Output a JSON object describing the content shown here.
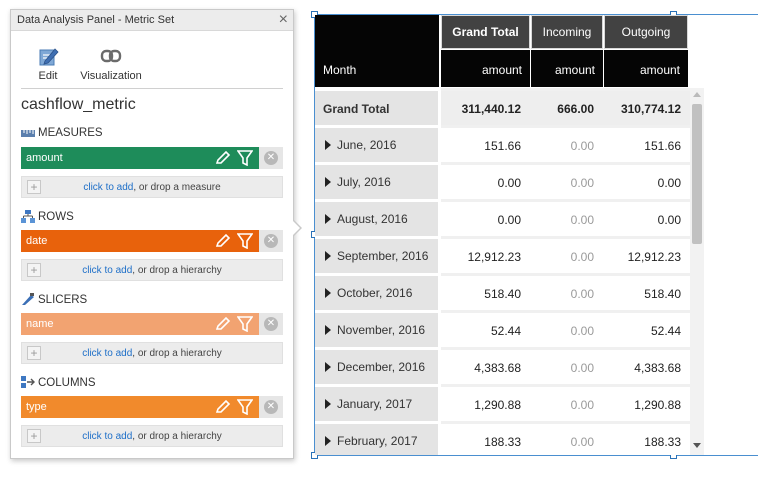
{
  "panel": {
    "title": "Data Analysis Panel - Metric Set",
    "close": "×",
    "toolbar": {
      "edit": "Edit",
      "visualization": "Visualization"
    },
    "metric_name": "cashflow_metric",
    "sections": {
      "measures": {
        "label": "MEASURES",
        "chip": "amount",
        "chip_color": "#1e8c5a",
        "drop_link": "click to add",
        "drop_rest": ", or drop a measure"
      },
      "rows": {
        "label": "ROWS",
        "chip": "date",
        "chip_color": "#e8620c",
        "drop_link": "click to add",
        "drop_rest": ", or drop a hierarchy"
      },
      "slicers": {
        "label": "SLICERS",
        "chip": "name",
        "chip_color": "#f2a371",
        "drop_link": "click to add",
        "drop_rest": ", or drop a hierarchy"
      },
      "columns": {
        "label": "COLUMNS",
        "chip": "type",
        "chip_color": "#f18a2c",
        "drop_link": "click to add",
        "drop_rest": ", or drop a hierarchy"
      }
    }
  },
  "table": {
    "col_headers": [
      "Grand Total",
      "Incoming",
      "Outgoing"
    ],
    "row_header": "Month",
    "measure_headers": [
      "amount",
      "amount",
      "amount"
    ],
    "grand_total": {
      "label": "Grand Total",
      "values": [
        "311,440.12",
        "666.00",
        "310,774.12"
      ]
    },
    "rows": [
      {
        "label": "June, 2016",
        "values": [
          "151.66",
          "0.00",
          "151.66"
        ]
      },
      {
        "label": "July, 2016",
        "values": [
          "0.00",
          "0.00",
          "0.00"
        ]
      },
      {
        "label": "August, 2016",
        "values": [
          "0.00",
          "0.00",
          "0.00"
        ]
      },
      {
        "label": "September, 2016",
        "values": [
          "12,912.23",
          "0.00",
          "12,912.23"
        ]
      },
      {
        "label": "October, 2016",
        "values": [
          "518.40",
          "0.00",
          "518.40"
        ]
      },
      {
        "label": "November, 2016",
        "values": [
          "52.44",
          "0.00",
          "52.44"
        ]
      },
      {
        "label": "December, 2016",
        "values": [
          "4,383.68",
          "0.00",
          "4,383.68"
        ]
      },
      {
        "label": "January, 2017",
        "values": [
          "1,290.88",
          "0.00",
          "1,290.88"
        ]
      },
      {
        "label": "February, 2017",
        "values": [
          "188.33",
          "0.00",
          "188.33"
        ]
      }
    ]
  }
}
